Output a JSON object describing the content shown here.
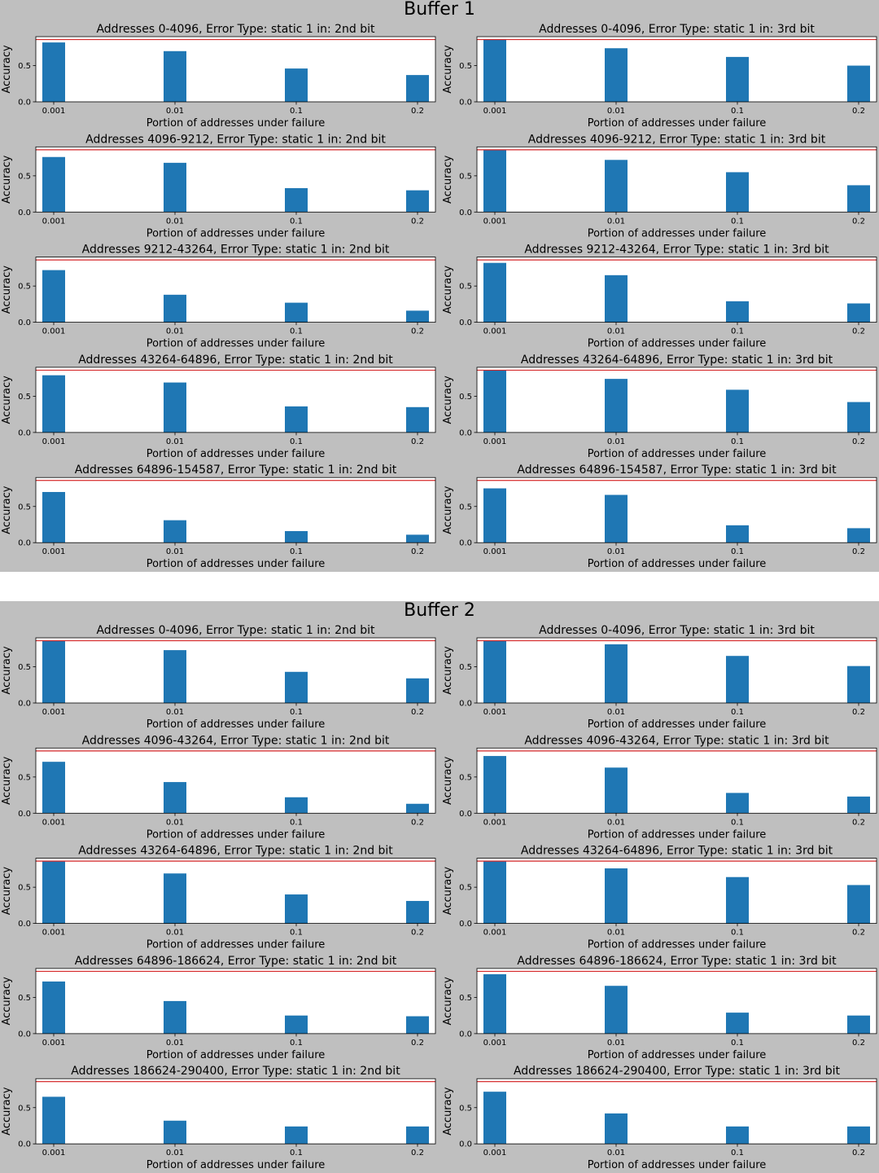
{
  "colors": {
    "background": "#bfbfbf",
    "bar": "#1f77b4",
    "reference_line": "#d62728",
    "axes_bg": "#ffffff"
  },
  "chart_data": [
    {
      "title": "Buffer 1",
      "type": "bar",
      "categories": [
        "0.001",
        "0.01",
        "0.1",
        "0.2"
      ],
      "xlabel": "Portion of addresses under failure",
      "ylabel": "Accuracy",
      "yticks": [
        "0.0",
        "0.5"
      ],
      "ylim": [
        0,
        0.9
      ],
      "baseline": 0.86,
      "grid": false,
      "subplots": [
        {
          "title": "Addresses 0-4096, Error Type: static 1 in: 2nd bit",
          "values": [
            0.82,
            0.7,
            0.46,
            0.37
          ]
        },
        {
          "title": "Addresses 0-4096, Error Type: static 1 in: 3rd bit",
          "values": [
            0.86,
            0.74,
            0.62,
            0.5
          ]
        },
        {
          "title": "Addresses 4096-9212, Error Type: static 1 in: 2nd bit",
          "values": [
            0.76,
            0.68,
            0.33,
            0.3
          ]
        },
        {
          "title": "Addresses 4096-9212, Error Type: static 1 in: 3rd bit",
          "values": [
            0.86,
            0.72,
            0.55,
            0.37
          ]
        },
        {
          "title": "Addresses 9212-43264, Error Type: static 1 in: 2nd bit",
          "values": [
            0.72,
            0.38,
            0.27,
            0.16
          ]
        },
        {
          "title": "Addresses 9212-43264, Error Type: static 1 in: 3rd bit",
          "values": [
            0.82,
            0.65,
            0.29,
            0.26
          ]
        },
        {
          "title": "Addresses 43264-64896, Error Type: static 1 in: 2nd bit",
          "values": [
            0.79,
            0.69,
            0.36,
            0.35
          ]
        },
        {
          "title": "Addresses 43264-64896, Error Type: static 1 in: 3rd bit",
          "values": [
            0.86,
            0.74,
            0.59,
            0.42
          ]
        },
        {
          "title": "Addresses 64896-154587, Error Type: static 1 in: 2nd bit",
          "values": [
            0.7,
            0.31,
            0.16,
            0.11
          ]
        },
        {
          "title": "Addresses 64896-154587, Error Type: static 1 in: 3rd bit",
          "values": [
            0.75,
            0.66,
            0.24,
            0.2
          ]
        }
      ]
    },
    {
      "title": "Buffer 2",
      "type": "bar",
      "categories": [
        "0.001",
        "0.01",
        "0.1",
        "0.2"
      ],
      "xlabel": "Portion of addresses under failure",
      "ylabel": "Accuracy",
      "yticks": [
        "0.0",
        "0.5"
      ],
      "ylim": [
        0,
        0.9
      ],
      "baseline": 0.86,
      "grid": false,
      "subplots": [
        {
          "title": "Addresses 0-4096, Error Type: static 1 in: 2nd bit",
          "values": [
            0.86,
            0.73,
            0.43,
            0.34
          ]
        },
        {
          "title": "Addresses 0-4096, Error Type: static 1 in: 3rd bit",
          "values": [
            0.86,
            0.81,
            0.65,
            0.51
          ]
        },
        {
          "title": "Addresses 4096-43264, Error Type: static 1 in: 2nd bit",
          "values": [
            0.71,
            0.43,
            0.22,
            0.13
          ]
        },
        {
          "title": "Addresses 4096-43264, Error Type: static 1 in: 3rd bit",
          "values": [
            0.79,
            0.63,
            0.28,
            0.23
          ]
        },
        {
          "title": "Addresses 43264-64896, Error Type: static 1 in: 2nd bit",
          "values": [
            0.86,
            0.69,
            0.4,
            0.31
          ]
        },
        {
          "title": "Addresses 43264-64896, Error Type: static 1 in: 3rd bit",
          "values": [
            0.86,
            0.76,
            0.64,
            0.53
          ]
        },
        {
          "title": "Addresses 64896-186624, Error Type: static 1 in: 2nd bit",
          "values": [
            0.72,
            0.45,
            0.25,
            0.24
          ]
        },
        {
          "title": "Addresses 64896-186624, Error Type: static 1 in: 3rd bit",
          "values": [
            0.82,
            0.66,
            0.29,
            0.25
          ]
        },
        {
          "title": "Addresses 186624-290400, Error Type: static 1 in: 2nd bit",
          "values": [
            0.65,
            0.32,
            0.24,
            0.24
          ]
        },
        {
          "title": "Addresses 186624-290400, Error Type: static 1 in: 3rd bit",
          "values": [
            0.72,
            0.42,
            0.24,
            0.24
          ]
        }
      ]
    }
  ]
}
